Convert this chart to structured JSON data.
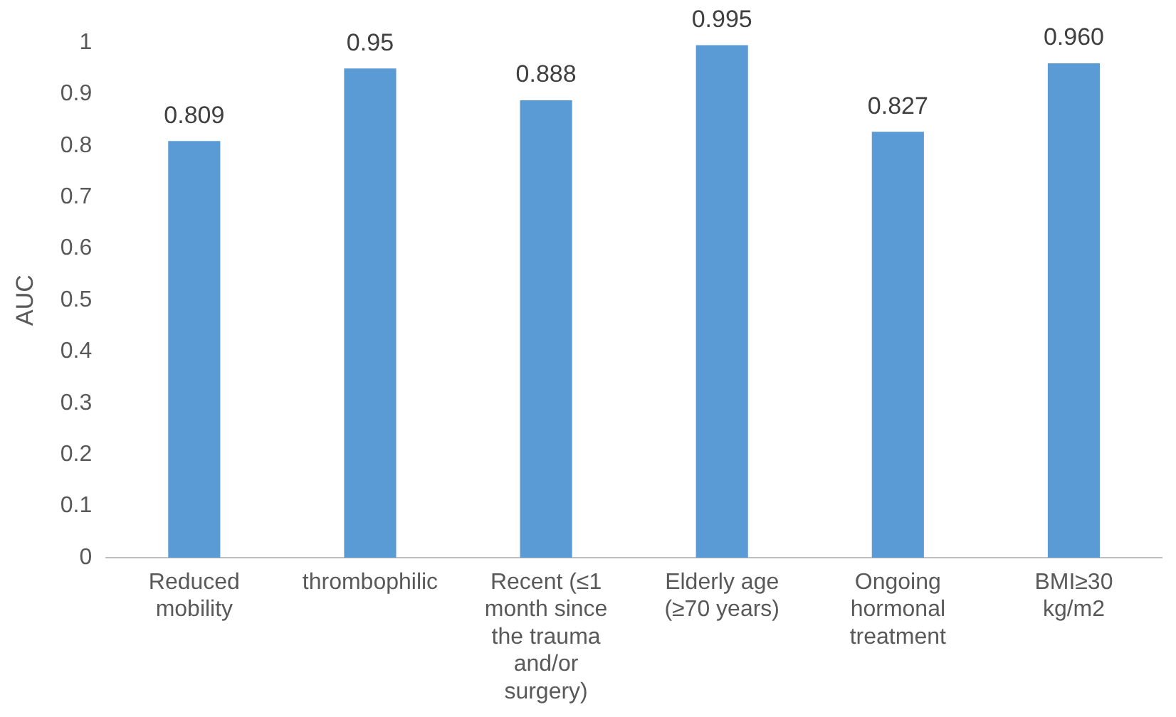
{
  "chart_data": {
    "type": "bar",
    "ylabel": "AUC",
    "categories": [
      "Reduced mobility",
      "thrombophilic",
      "Recent (≤1 month since the trauma and/or surgery)",
      "Elderly age (≥70 years)",
      "Ongoing hormonal treatment",
      "BMI≥30 kg/m2"
    ],
    "values": [
      0.809,
      0.95,
      0.888,
      0.995,
      0.827,
      0.96
    ],
    "value_labels": [
      "0.809",
      "0.95",
      "0.888",
      "0.995",
      "0.827",
      "0.960"
    ],
    "color": "#5b9bd5",
    "ylim": [
      0,
      1
    ],
    "yticks": [
      0,
      0.1,
      0.2,
      0.3,
      0.4,
      0.5,
      0.6,
      0.7,
      0.8,
      0.9,
      1
    ],
    "grid": false,
    "legend": false
  }
}
